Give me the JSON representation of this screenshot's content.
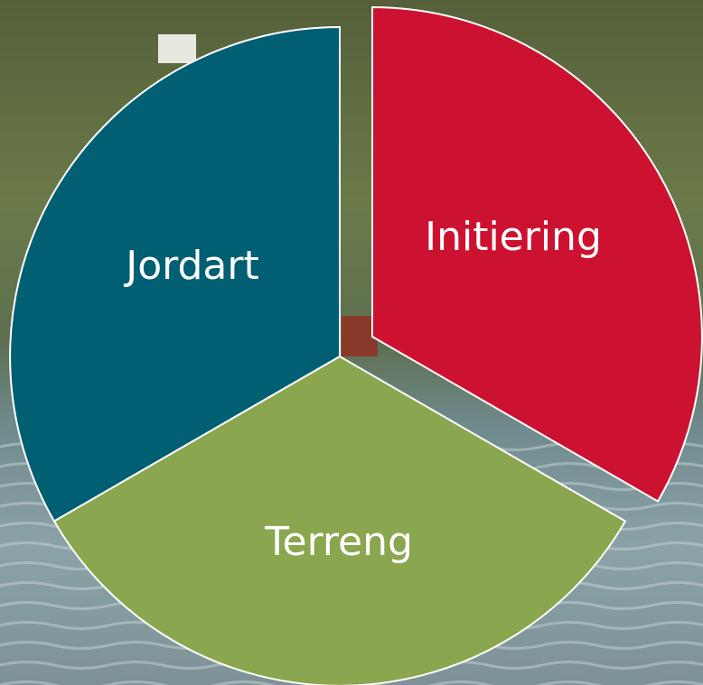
{
  "nodes": [
    {
      "label": "Initiering"
    },
    {
      "label": "Terreng"
    },
    {
      "label": "Jordart"
    }
  ]
}
